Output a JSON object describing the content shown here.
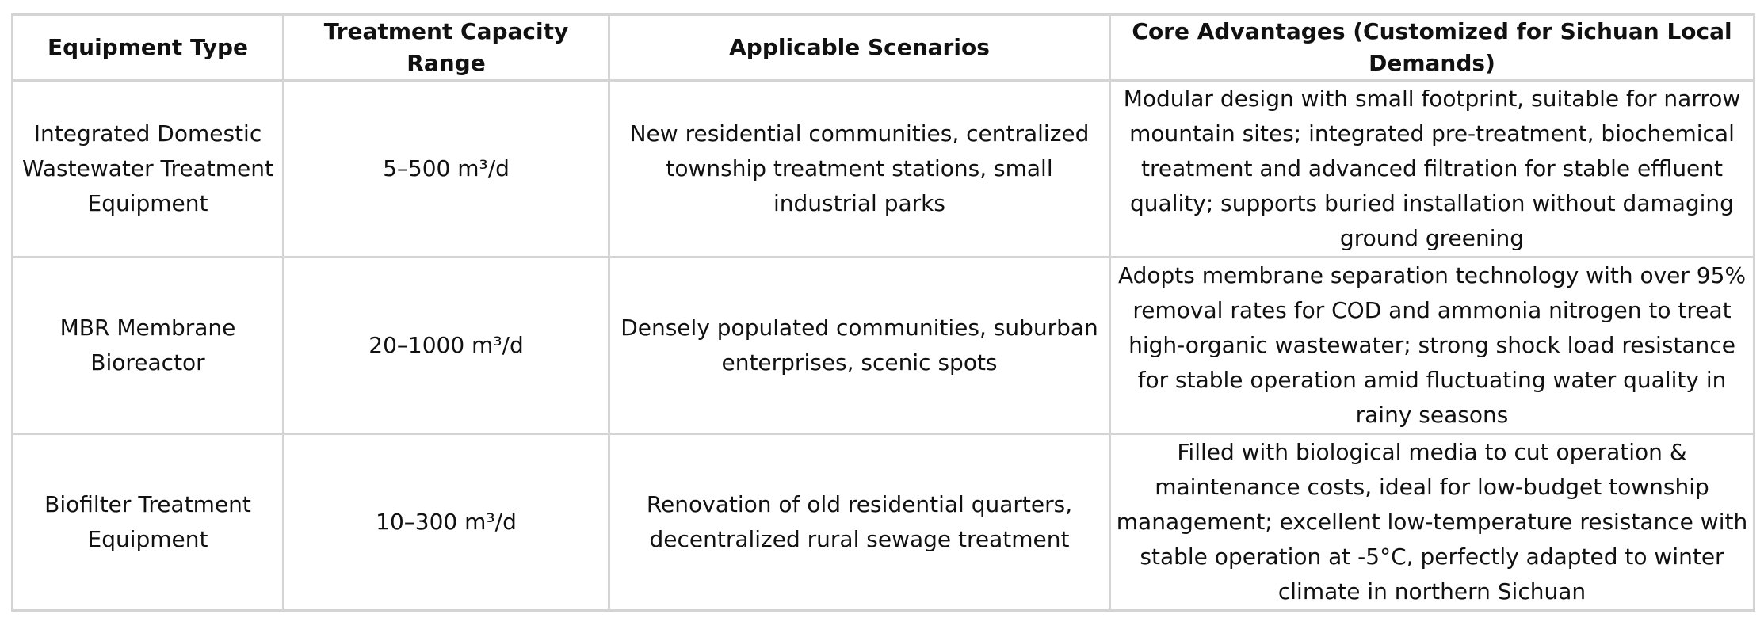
{
  "table": {
    "header": [
      "Equipment Type",
      "Treatment Capacity Range",
      "Applicable Scenarios",
      "Core Advantages (Customized for Sichuan Local Demands)"
    ],
    "rows": [
      [
        "Integrated Domestic Wastewater Treatment Equipment",
        "5–500 m³/d",
        "New residential communities, centralized township treatment stations, small industrial parks",
        "Modular design with small footprint, suitable for narrow mountain sites; integrated pre-treatment, biochemical treatment and advanced filtration for stable effluent quality; supports buried installation without damaging ground greening"
      ],
      [
        "MBR Membrane Bioreactor",
        "20–1000 m³/d",
        "Densely populated communities, suburban enterprises, scenic spots",
        "Adopts membrane separation technology with over 95% removal rates for COD and ammonia nitrogen to treat high-organic wastewater; strong shock load resistance for stable operation amid fluctuating water quality in rainy seasons"
      ],
      [
        "Biofilter Treatment Equipment",
        "10–300 m³/d",
        "Renovation of old residential quarters, decentralized rural sewage treatment",
        "Filled with biological media to cut operation & maintenance costs, ideal for low-budget township management; excellent low-temperature resistance with stable operation at -5°C, perfectly adapted to winter climate in northern Sichuan"
      ]
    ]
  }
}
